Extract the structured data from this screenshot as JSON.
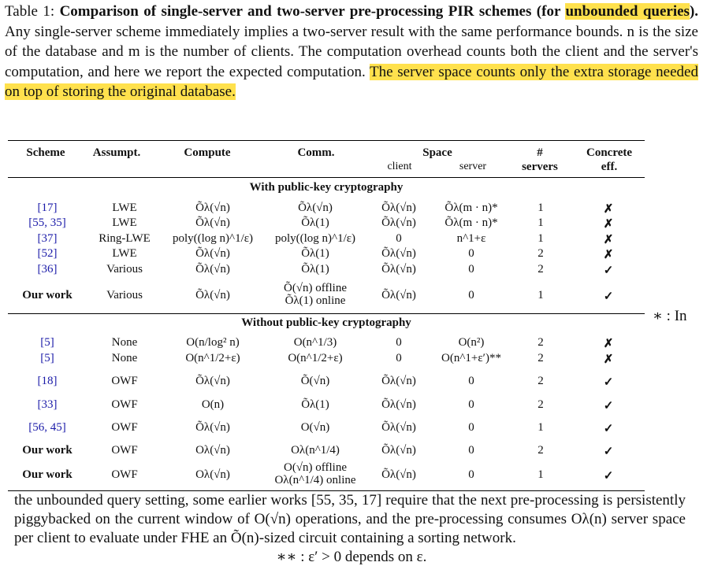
{
  "caption": {
    "label": "Table 1: ",
    "bold_title_a": "Comparison of single-server and two-server pre-processing PIR schemes (for ",
    "bold_title_hl": "unbounded queries",
    "bold_title_b": ").",
    "text_a": " Any single-server scheme immediately implies a two-server result with the same performance bounds. n is the size of the database and m is the number of clients. The computation overhead counts both the client and the server's computation, and here we report the expected computation. ",
    "text_hl": "The server space counts only the extra storage needed on top of storing the original database."
  },
  "headers": {
    "scheme": "Scheme",
    "assumpt": "Assumpt.",
    "compute": "Compute",
    "comm": "Comm.",
    "space": "Space",
    "client": "client",
    "server": "server",
    "servers_a": "#",
    "servers_b": "servers",
    "concrete_a": "Concrete",
    "concrete_b": "eff."
  },
  "section1": "With public-key cryptography",
  "section2": "Without public-key cryptography",
  "rows_pk": [
    {
      "scheme": "[17]",
      "ref": true,
      "assumpt": "LWE",
      "compute": "Õλ(√n)",
      "comm": "Õλ(√n)",
      "client": "Õλ(√n)",
      "server": "Õλ(m · n)*",
      "servers": "1",
      "eff": "✗"
    },
    {
      "scheme": "[55, 35]",
      "ref": true,
      "assumpt": "LWE",
      "compute": "Õλ(√n)",
      "comm": "Õλ(1)",
      "client": "Õλ(√n)",
      "server": "Õλ(m · n)*",
      "servers": "1",
      "eff": "✗"
    },
    {
      "scheme": "[37]",
      "ref": true,
      "assumpt": "Ring-LWE",
      "compute": "poly((log n)^1/ε)",
      "comm": "poly((log n)^1/ε)",
      "client": "0",
      "server": "n^1+ε",
      "servers": "1",
      "eff": "✗"
    },
    {
      "scheme": "[52]",
      "ref": true,
      "assumpt": "LWE",
      "compute": "Õλ(√n)",
      "comm": "Õλ(1)",
      "client": "Õλ(√n)",
      "server": "0",
      "servers": "2",
      "eff": "✗"
    },
    {
      "scheme": "[36]",
      "ref": true,
      "assumpt": "Various",
      "compute": "Õλ(√n)",
      "comm": "Õλ(1)",
      "client": "Õλ(√n)",
      "server": "0",
      "servers": "2",
      "eff": "✓"
    }
  ],
  "row_ourwork1": {
    "scheme": "Our work",
    "assumpt": "Various",
    "compute": "Õλ(√n)",
    "comm_a": "Õ(√n) offline",
    "comm_b": "Õλ(1) online",
    "client": "Õλ(√n)",
    "server": "0",
    "servers": "1",
    "eff": "✓"
  },
  "rows_nopk": [
    {
      "scheme": "[5]",
      "assumpt": "None",
      "compute": "O(n/log² n)",
      "comm": "O(n^1/3)",
      "client": "0",
      "server": "O(n²)",
      "servers": "2",
      "eff": "✗"
    },
    {
      "scheme": "[5]",
      "assumpt": "None",
      "compute": "O(n^1/2+ε)",
      "comm": "O(n^1/2+ε)",
      "client": "0",
      "server": "O(n^1+ε′)**",
      "servers": "2",
      "eff": "✗"
    },
    {
      "scheme": "[18]",
      "assumpt": "OWF",
      "compute": "Õλ(√n)",
      "comm": "Õ(√n)",
      "client": "Õλ(√n)",
      "server": "0",
      "servers": "2",
      "eff": "✓"
    },
    {
      "scheme": "[33]",
      "assumpt": "OWF",
      "compute": "O(n)",
      "comm": "Õλ(1)",
      "client": "Õλ(√n)",
      "server": "0",
      "servers": "2",
      "eff": "✓"
    },
    {
      "scheme": "[56, 45]",
      "assumpt": "OWF",
      "compute": "Õλ(√n)",
      "comm": "O(√n)",
      "client": "Õλ(√n)",
      "server": "0",
      "servers": "1",
      "eff": "✓"
    },
    {
      "scheme": "Our work",
      "assumpt": "OWF",
      "compute": "Oλ(√n)",
      "comm": "Oλ(n^1/4)",
      "client": "Õλ(√n)",
      "server": "0",
      "servers": "2",
      "eff": "✓"
    }
  ],
  "row_ourwork3": {
    "scheme": "Our work",
    "assumpt": "OWF",
    "compute": "Oλ(√n)",
    "comm_a": "O(√n) offline",
    "comm_b": "Oλ(n^1/4) online",
    "client": "Õλ(√n)",
    "server": "0",
    "servers": "1",
    "eff": "✓"
  },
  "side_note": "∗ : In",
  "footnote": "the unbounded query setting, some earlier works [55, 35, 17] require that the next pre-processing is persistently piggybacked on the current window of O(√n) operations, and the pre-processing consumes Oλ(n) server space per client to evaluate under FHE an Õ(n)-sized circuit containing a sorting network.",
  "footnote2": "∗∗ : ε′ > 0 depends on ε."
}
